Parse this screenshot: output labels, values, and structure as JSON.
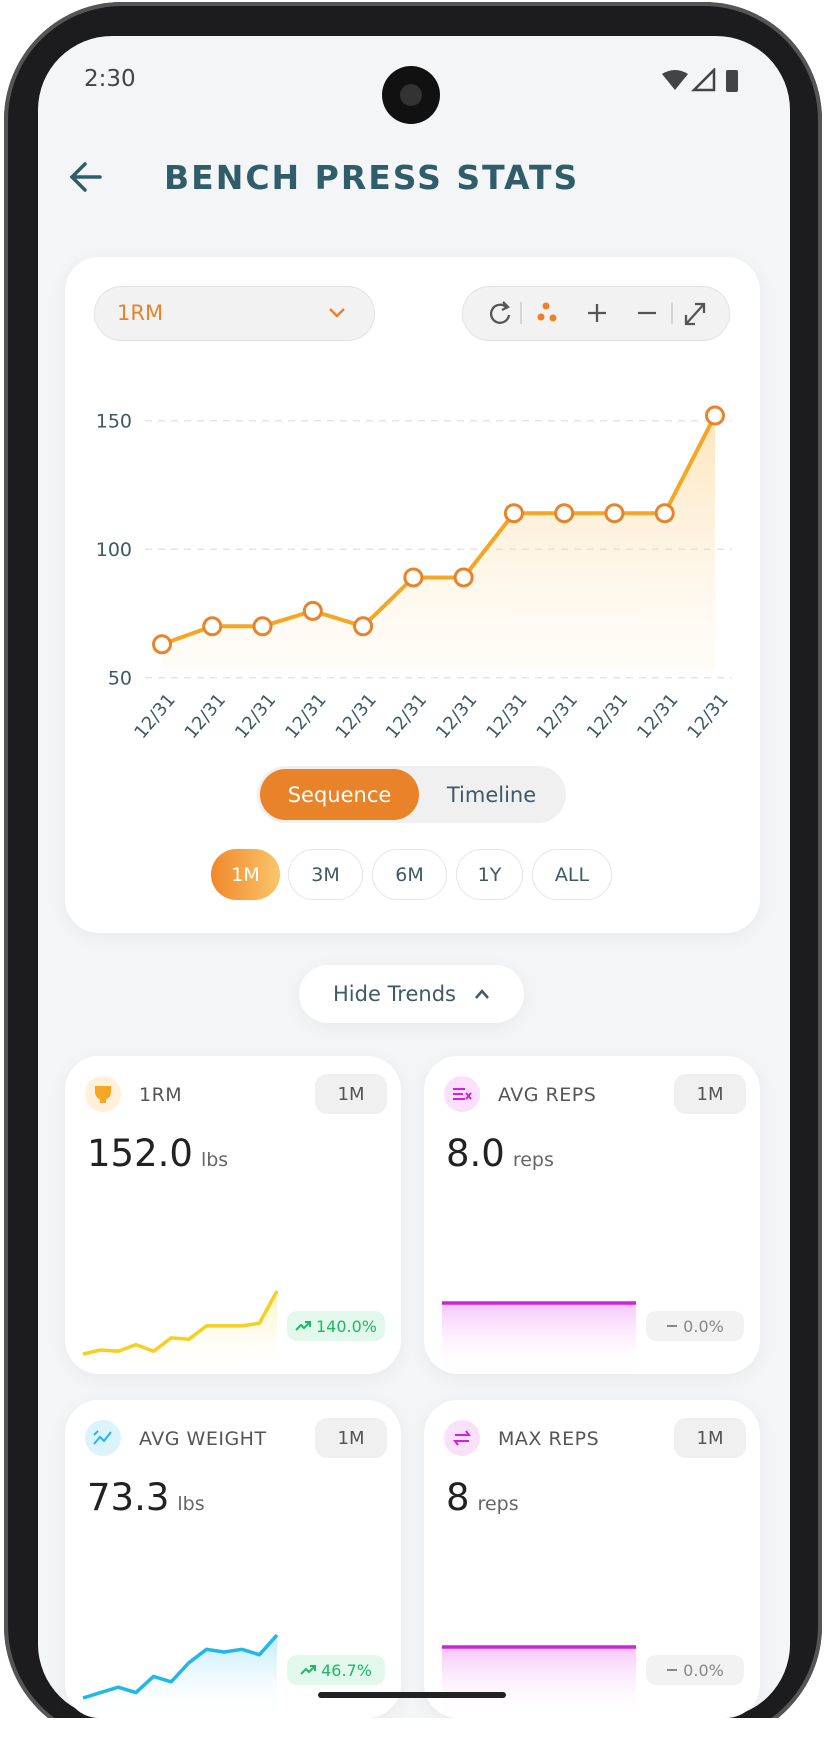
{
  "status_bar": {
    "time": "2:30"
  },
  "header": {
    "title": "BENCH PRESS STATS"
  },
  "chart_panel": {
    "metric": "1RM",
    "view_modes": [
      "Sequence",
      "Timeline"
    ],
    "ranges": [
      "1M",
      "3M",
      "6M",
      "1Y",
      "ALL"
    ],
    "chart": {
      "type": "line",
      "categories": [
        "12/31",
        "12/31",
        "12/31",
        "12/31",
        "12/31",
        "12/31",
        "12/31",
        "12/31",
        "12/31",
        "12/31",
        "12/31",
        "12/31"
      ],
      "values": [
        63,
        70,
        70,
        76,
        70,
        89,
        89,
        114,
        114,
        114,
        114,
        152
      ],
      "ylim": [
        53,
        160
      ],
      "yticks": [
        50,
        100,
        150
      ],
      "grid": true,
      "color": "#f5a623"
    }
  },
  "trends_toggle": "Hide Trends",
  "cards": [
    {
      "label": "1RM",
      "period": "1M",
      "value": "152.0",
      "unit": "lbs",
      "change": "140.0%",
      "sparkline": [
        63,
        66,
        65,
        70,
        65,
        75,
        74,
        84,
        84,
        84,
        86,
        110
      ]
    },
    {
      "label": "AVG REPS",
      "period": "1M",
      "value": "8.0",
      "unit": "reps",
      "change": "0.0%",
      "sparkline": [
        8,
        8,
        8,
        8,
        8,
        8,
        8,
        8,
        8,
        8,
        8,
        8
      ]
    },
    {
      "label": "AVG WEIGHT",
      "period": "1M",
      "value": "73.3",
      "unit": "lbs",
      "change": "46.7%",
      "sparkline": [
        50,
        52,
        54,
        52,
        58,
        56,
        63,
        68,
        67,
        68,
        66,
        73.3
      ]
    },
    {
      "label": "MAX REPS",
      "period": "1M",
      "value": "8",
      "unit": "reps",
      "change": "0.0%",
      "sparkline": [
        8,
        8,
        8,
        8,
        8,
        8,
        8,
        8,
        8,
        8,
        8,
        8
      ]
    }
  ]
}
